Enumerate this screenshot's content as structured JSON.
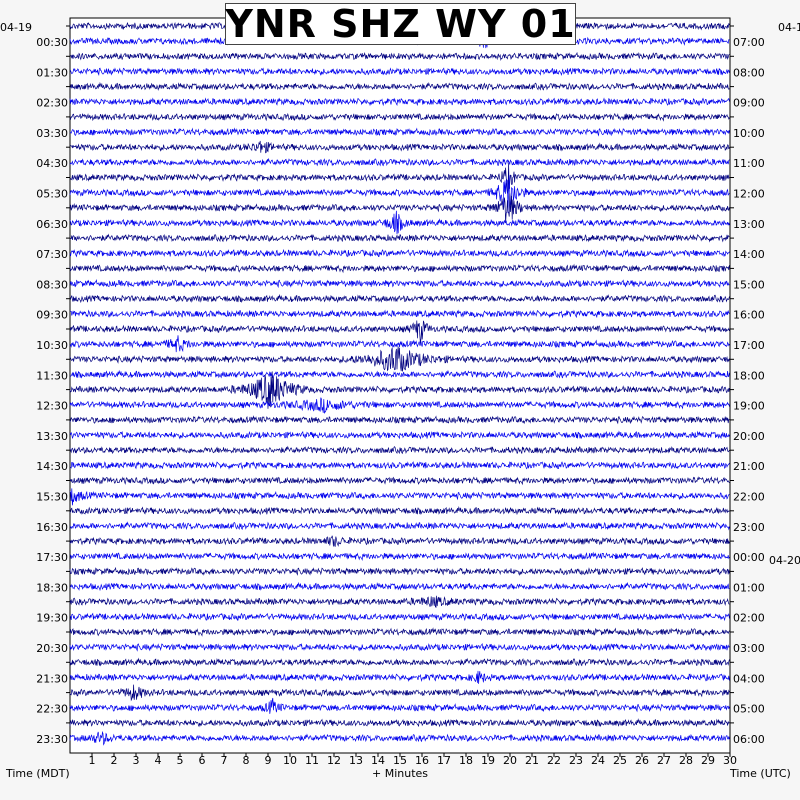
{
  "chart_data": {
    "type": "line",
    "title": "YNR SHZ WY 01",
    "left_date": "04-19",
    "right_date_top": "04-1",
    "right_date_change": "04-20",
    "xlabel": "+ Minutes",
    "left_axis_label": "Time (MDT)",
    "right_axis_label": "Time (UTC)",
    "x_range": [
      0,
      30
    ],
    "x_ticks": [
      "1",
      "2",
      "3",
      "4",
      "5",
      "6",
      "7",
      "8",
      "9",
      "10",
      "11",
      "12",
      "13",
      "14",
      "15",
      "16",
      "17",
      "18",
      "19",
      "20",
      "21",
      "22",
      "23",
      "24",
      "25",
      "26",
      "27",
      "28",
      "29",
      "30"
    ],
    "left_ticks": [
      "00:30",
      "01:30",
      "02:30",
      "03:30",
      "04:30",
      "05:30",
      "06:30",
      "07:30",
      "08:30",
      "09:30",
      "10:30",
      "11:30",
      "12:30",
      "13:30",
      "14:30",
      "15:30",
      "16:30",
      "17:30",
      "18:30",
      "19:30",
      "20:30",
      "21:30",
      "22:30",
      "23:30"
    ],
    "right_ticks": [
      "07:00",
      "08:00",
      "09:00",
      "10:00",
      "11:00",
      "12:00",
      "13:00",
      "14:00",
      "15:00",
      "16:00",
      "17:00",
      "18:00",
      "19:00",
      "20:00",
      "21:00",
      "22:00",
      "23:00",
      "00:00",
      "01:00",
      "02:00",
      "03:00",
      "04:00",
      "05:00",
      "06:00"
    ],
    "trace_count": 48,
    "colors": [
      "#000080",
      "#0000ee"
    ],
    "events": [
      {
        "trace": 1,
        "minute": 18.9,
        "amp": 0.6,
        "width": 0.2
      },
      {
        "trace": 8,
        "minute": 8.7,
        "amp": 0.4,
        "width": 0.3
      },
      {
        "trace": 10,
        "minute": 19.9,
        "amp": 1.0,
        "width": 0.2
      },
      {
        "trace": 11,
        "minute": 19.9,
        "amp": 1.6,
        "width": 0.3
      },
      {
        "trace": 12,
        "minute": 19.9,
        "amp": 1.3,
        "width": 0.3
      },
      {
        "trace": 13,
        "minute": 14.8,
        "amp": 0.8,
        "width": 0.25
      },
      {
        "trace": 20,
        "minute": 15.9,
        "amp": 1.0,
        "width": 0.2
      },
      {
        "trace": 21,
        "minute": 4.9,
        "amp": 0.5,
        "width": 0.3
      },
      {
        "trace": 22,
        "minute": 14.8,
        "amp": 1.0,
        "width": 0.8
      },
      {
        "trace": 24,
        "minute": 9.1,
        "amp": 1.4,
        "width": 0.6
      },
      {
        "trace": 25,
        "minute": 11.5,
        "amp": 0.4,
        "width": 0.8
      },
      {
        "trace": 31,
        "minute": 0.1,
        "amp": 0.5,
        "width": 0.3
      },
      {
        "trace": 34,
        "minute": 12.0,
        "amp": 0.3,
        "width": 0.3
      },
      {
        "trace": 38,
        "minute": 16.5,
        "amp": 0.3,
        "width": 0.5
      },
      {
        "trace": 43,
        "minute": 18.6,
        "amp": 0.4,
        "width": 0.2
      },
      {
        "trace": 44,
        "minute": 2.9,
        "amp": 0.5,
        "width": 0.3
      },
      {
        "trace": 45,
        "minute": 9.2,
        "amp": 0.5,
        "width": 0.2
      },
      {
        "trace": 47,
        "minute": 1.4,
        "amp": 0.4,
        "width": 0.3
      }
    ]
  }
}
